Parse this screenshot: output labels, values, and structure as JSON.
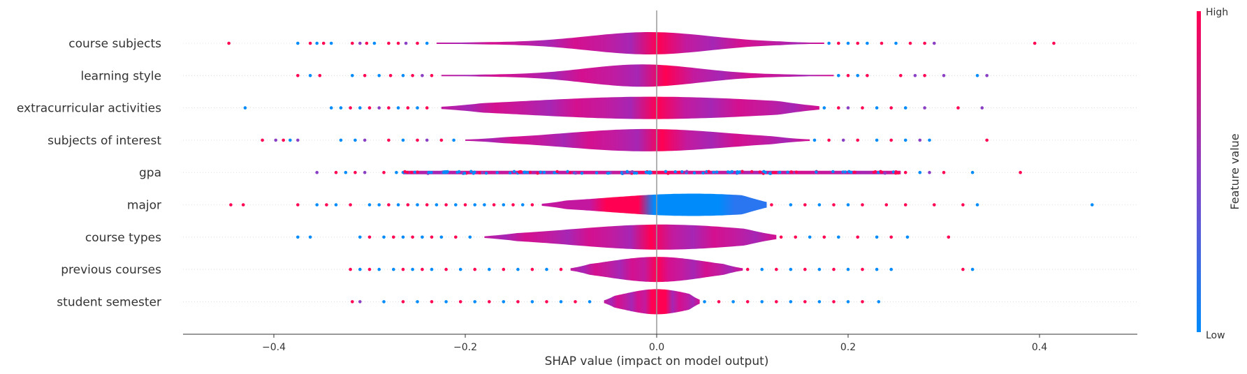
{
  "chart_data": {
    "type": "scatter",
    "subtype": "shap-summary-violin",
    "title": "",
    "xlabel": "SHAP value (impact on model output)",
    "ylabel": "",
    "xlim": [
      -0.49,
      0.5
    ],
    "xticks": [
      -0.4,
      -0.2,
      0.0,
      0.2,
      0.4
    ],
    "xtick_labels": [
      "−0.4",
      "−0.2",
      "0.0",
      "0.2",
      "0.4"
    ],
    "grid": false,
    "colorbar": {
      "title": "Feature value",
      "high_label": "High",
      "low_label": "Low",
      "high_color": "#ff0052",
      "mid_color": "#8a3fc4",
      "low_color": "#008bfb"
    },
    "features": [
      {
        "name": "course subjects",
        "violin_range": [
          -0.23,
          0.175
        ],
        "violin_core": [
          -0.045,
          0.03
        ],
        "outliers": [
          [
            -0.447,
            "h"
          ],
          [
            -0.375,
            "l"
          ],
          [
            -0.362,
            "h"
          ],
          [
            -0.355,
            "l"
          ],
          [
            -0.348,
            "h"
          ],
          [
            -0.34,
            "l"
          ],
          [
            -0.318,
            "h"
          ],
          [
            -0.31,
            "m"
          ],
          [
            -0.303,
            "h"
          ],
          [
            -0.295,
            "l"
          ],
          [
            -0.28,
            "h"
          ],
          [
            -0.27,
            "h"
          ],
          [
            -0.262,
            "m"
          ],
          [
            -0.25,
            "h"
          ],
          [
            -0.24,
            "l"
          ],
          [
            0.18,
            "l"
          ],
          [
            0.19,
            "h"
          ],
          [
            0.2,
            "l"
          ],
          [
            0.21,
            "h"
          ],
          [
            0.22,
            "l"
          ],
          [
            0.235,
            "h"
          ],
          [
            0.25,
            "l"
          ],
          [
            0.265,
            "h"
          ],
          [
            0.28,
            "h"
          ],
          [
            0.29,
            "m"
          ],
          [
            0.395,
            "h"
          ],
          [
            0.415,
            "h"
          ]
        ]
      },
      {
        "name": "learning style",
        "violin_range": [
          -0.225,
          0.185
        ],
        "violin_core": [
          -0.05,
          0.02
        ],
        "outliers": [
          [
            -0.375,
            "h"
          ],
          [
            -0.362,
            "l"
          ],
          [
            -0.352,
            "h"
          ],
          [
            -0.318,
            "l"
          ],
          [
            -0.305,
            "h"
          ],
          [
            -0.29,
            "l"
          ],
          [
            -0.278,
            "h"
          ],
          [
            -0.265,
            "l"
          ],
          [
            -0.255,
            "h"
          ],
          [
            -0.245,
            "m"
          ],
          [
            -0.235,
            "h"
          ],
          [
            0.19,
            "l"
          ],
          [
            0.2,
            "h"
          ],
          [
            0.21,
            "l"
          ],
          [
            0.22,
            "h"
          ],
          [
            0.255,
            "h"
          ],
          [
            0.27,
            "m"
          ],
          [
            0.28,
            "h"
          ],
          [
            0.3,
            "m"
          ],
          [
            0.335,
            "l"
          ],
          [
            0.345,
            "m"
          ]
        ]
      },
      {
        "name": "extracurricular activities",
        "violin_range": [
          -0.225,
          0.17
        ],
        "violin_core": [
          -0.08,
          0.07
        ],
        "outliers": [
          [
            -0.43,
            "l"
          ],
          [
            -0.34,
            "l"
          ],
          [
            -0.33,
            "l"
          ],
          [
            -0.32,
            "h"
          ],
          [
            -0.31,
            "l"
          ],
          [
            -0.3,
            "h"
          ],
          [
            -0.29,
            "m"
          ],
          [
            -0.28,
            "h"
          ],
          [
            -0.27,
            "l"
          ],
          [
            -0.26,
            "h"
          ],
          [
            -0.25,
            "l"
          ],
          [
            -0.24,
            "h"
          ],
          [
            0.175,
            "l"
          ],
          [
            0.19,
            "h"
          ],
          [
            0.2,
            "m"
          ],
          [
            0.215,
            "h"
          ],
          [
            0.23,
            "l"
          ],
          [
            0.245,
            "h"
          ],
          [
            0.26,
            "l"
          ],
          [
            0.28,
            "m"
          ],
          [
            0.315,
            "h"
          ],
          [
            0.34,
            "m"
          ]
        ]
      },
      {
        "name": "subjects of interest",
        "violin_range": [
          -0.2,
          0.16
        ],
        "violin_core": [
          -0.06,
          0.04
        ],
        "outliers": [
          [
            -0.412,
            "h"
          ],
          [
            -0.398,
            "m"
          ],
          [
            -0.39,
            "h"
          ],
          [
            -0.383,
            "l"
          ],
          [
            -0.375,
            "m"
          ],
          [
            -0.33,
            "l"
          ],
          [
            -0.315,
            "l"
          ],
          [
            -0.305,
            "m"
          ],
          [
            -0.28,
            "h"
          ],
          [
            -0.265,
            "l"
          ],
          [
            -0.25,
            "h"
          ],
          [
            -0.24,
            "m"
          ],
          [
            -0.225,
            "h"
          ],
          [
            -0.212,
            "l"
          ],
          [
            0.165,
            "l"
          ],
          [
            0.18,
            "h"
          ],
          [
            0.195,
            "m"
          ],
          [
            0.21,
            "h"
          ],
          [
            0.23,
            "l"
          ],
          [
            0.245,
            "h"
          ],
          [
            0.26,
            "l"
          ],
          [
            0.275,
            "m"
          ],
          [
            0.285,
            "l"
          ],
          [
            0.345,
            "h"
          ]
        ]
      },
      {
        "name": "gpa",
        "violin_range": [
          -0.265,
          0.255
        ],
        "violin_core": [
          -0.265,
          0.255
        ],
        "band_only": true,
        "outliers": [
          [
            -0.355,
            "m"
          ],
          [
            -0.335,
            "h"
          ],
          [
            -0.325,
            "l"
          ],
          [
            -0.315,
            "h"
          ],
          [
            -0.305,
            "m"
          ],
          [
            -0.285,
            "h"
          ],
          [
            -0.272,
            "l"
          ],
          [
            0.26,
            "h"
          ],
          [
            0.275,
            "l"
          ],
          [
            0.285,
            "m"
          ],
          [
            0.3,
            "h"
          ],
          [
            0.33,
            "l"
          ],
          [
            0.38,
            "h"
          ]
        ]
      },
      {
        "name": "major",
        "violin_range": [
          -0.12,
          0.115
        ],
        "violin_core": [
          -0.015,
          0.09
        ],
        "low_right": true,
        "outliers": [
          [
            -0.445,
            "h"
          ],
          [
            -0.432,
            "h"
          ],
          [
            -0.375,
            "h"
          ],
          [
            -0.355,
            "l"
          ],
          [
            -0.345,
            "h"
          ],
          [
            -0.335,
            "l"
          ],
          [
            -0.32,
            "h"
          ],
          [
            -0.3,
            "l"
          ],
          [
            -0.29,
            "l"
          ],
          [
            -0.28,
            "h"
          ],
          [
            -0.27,
            "l"
          ],
          [
            -0.26,
            "h"
          ],
          [
            -0.25,
            "l"
          ],
          [
            -0.24,
            "h"
          ],
          [
            -0.23,
            "l"
          ],
          [
            -0.22,
            "h"
          ],
          [
            -0.21,
            "l"
          ],
          [
            -0.2,
            "h"
          ],
          [
            -0.19,
            "l"
          ],
          [
            -0.18,
            "l"
          ],
          [
            -0.17,
            "h"
          ],
          [
            -0.16,
            "l"
          ],
          [
            -0.15,
            "h"
          ],
          [
            -0.14,
            "l"
          ],
          [
            -0.13,
            "h"
          ],
          [
            0.12,
            "h"
          ],
          [
            0.14,
            "l"
          ],
          [
            0.155,
            "h"
          ],
          [
            0.17,
            "l"
          ],
          [
            0.185,
            "h"
          ],
          [
            0.2,
            "l"
          ],
          [
            0.215,
            "h"
          ],
          [
            0.24,
            "h"
          ],
          [
            0.26,
            "h"
          ],
          [
            0.29,
            "h"
          ],
          [
            0.32,
            "h"
          ],
          [
            0.335,
            "l"
          ],
          [
            0.455,
            "l"
          ]
        ]
      },
      {
        "name": "course types",
        "violin_range": [
          -0.18,
          0.125
        ],
        "violin_core": [
          -0.05,
          0.06
        ],
        "outliers": [
          [
            -0.375,
            "l"
          ],
          [
            -0.362,
            "l"
          ],
          [
            -0.31,
            "l"
          ],
          [
            -0.3,
            "h"
          ],
          [
            -0.285,
            "l"
          ],
          [
            -0.275,
            "h"
          ],
          [
            -0.265,
            "l"
          ],
          [
            -0.255,
            "h"
          ],
          [
            -0.245,
            "l"
          ],
          [
            -0.235,
            "h"
          ],
          [
            -0.225,
            "l"
          ],
          [
            -0.21,
            "h"
          ],
          [
            -0.195,
            "l"
          ],
          [
            0.13,
            "h"
          ],
          [
            0.145,
            "h"
          ],
          [
            0.16,
            "l"
          ],
          [
            0.175,
            "h"
          ],
          [
            0.19,
            "l"
          ],
          [
            0.21,
            "h"
          ],
          [
            0.23,
            "l"
          ],
          [
            0.245,
            "h"
          ],
          [
            0.262,
            "l"
          ],
          [
            0.305,
            "h"
          ]
        ]
      },
      {
        "name": "previous courses",
        "violin_range": [
          -0.09,
          0.09
        ],
        "violin_core": [
          -0.03,
          0.03
        ],
        "outliers": [
          [
            -0.32,
            "h"
          ],
          [
            -0.31,
            "l"
          ],
          [
            -0.3,
            "h"
          ],
          [
            -0.29,
            "l"
          ],
          [
            -0.275,
            "l"
          ],
          [
            -0.265,
            "h"
          ],
          [
            -0.255,
            "l"
          ],
          [
            -0.245,
            "h"
          ],
          [
            -0.235,
            "l"
          ],
          [
            -0.22,
            "h"
          ],
          [
            -0.205,
            "l"
          ],
          [
            -0.19,
            "h"
          ],
          [
            -0.175,
            "l"
          ],
          [
            -0.16,
            "h"
          ],
          [
            -0.145,
            "l"
          ],
          [
            -0.13,
            "h"
          ],
          [
            -0.115,
            "l"
          ],
          [
            -0.1,
            "h"
          ],
          [
            0.095,
            "h"
          ],
          [
            0.11,
            "l"
          ],
          [
            0.125,
            "h"
          ],
          [
            0.14,
            "l"
          ],
          [
            0.155,
            "h"
          ],
          [
            0.17,
            "l"
          ],
          [
            0.185,
            "h"
          ],
          [
            0.2,
            "l"
          ],
          [
            0.215,
            "h"
          ],
          [
            0.23,
            "l"
          ],
          [
            0.245,
            "l"
          ],
          [
            0.32,
            "h"
          ],
          [
            0.33,
            "l"
          ]
        ]
      },
      {
        "name": "student semester",
        "violin_range": [
          -0.055,
          0.045
        ],
        "violin_core": [
          -0.02,
          0.02
        ],
        "outliers": [
          [
            -0.318,
            "h"
          ],
          [
            -0.31,
            "m"
          ],
          [
            -0.285,
            "l"
          ],
          [
            -0.265,
            "h"
          ],
          [
            -0.25,
            "l"
          ],
          [
            -0.235,
            "h"
          ],
          [
            -0.22,
            "l"
          ],
          [
            -0.205,
            "h"
          ],
          [
            -0.19,
            "l"
          ],
          [
            -0.175,
            "h"
          ],
          [
            -0.16,
            "l"
          ],
          [
            -0.145,
            "h"
          ],
          [
            -0.13,
            "l"
          ],
          [
            -0.115,
            "h"
          ],
          [
            -0.1,
            "l"
          ],
          [
            -0.085,
            "h"
          ],
          [
            -0.07,
            "l"
          ],
          [
            0.05,
            "l"
          ],
          [
            0.065,
            "h"
          ],
          [
            0.08,
            "l"
          ],
          [
            0.095,
            "h"
          ],
          [
            0.11,
            "l"
          ],
          [
            0.125,
            "h"
          ],
          [
            0.14,
            "l"
          ],
          [
            0.155,
            "h"
          ],
          [
            0.17,
            "l"
          ],
          [
            0.185,
            "h"
          ],
          [
            0.2,
            "l"
          ],
          [
            0.215,
            "h"
          ],
          [
            0.232,
            "l"
          ]
        ]
      }
    ]
  }
}
